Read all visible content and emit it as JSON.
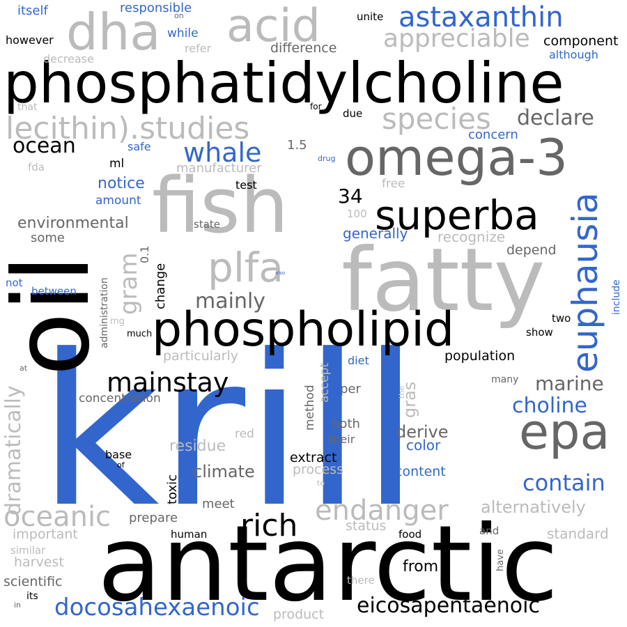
{
  "palette": {
    "black": "#000000",
    "blue": "#3366cc",
    "dark-gray": "#666666",
    "light-gray": "#bbbbbb"
  },
  "words": [
    {
      "text": "krill",
      "color": "#3366cc"
    },
    {
      "text": "antarctic",
      "color": "#000000"
    },
    {
      "text": "fatty",
      "color": "#bbbbbb"
    },
    {
      "text": "oil",
      "color": "#000000"
    },
    {
      "text": "fish",
      "color": "#bbbbbb"
    },
    {
      "text": "phosphatidylcholine",
      "color": "#000000"
    },
    {
      "text": "omega-3",
      "color": "#666666"
    },
    {
      "text": "dha",
      "color": "#bbbbbb"
    },
    {
      "text": "acid",
      "color": "#bbbbbb"
    },
    {
      "text": "phospholipid",
      "color": "#000000"
    },
    {
      "text": "epa",
      "color": "#666666"
    },
    {
      "text": "euphausia",
      "color": "#3366cc"
    },
    {
      "text": "superba",
      "color": "#000000"
    },
    {
      "text": "lecithin).studies",
      "color": "#bbbbbb"
    },
    {
      "text": "plfa",
      "color": "#bbbbbb"
    },
    {
      "text": "astaxanthin",
      "color": "#3366cc"
    },
    {
      "text": "rich",
      "color": "#000000"
    },
    {
      "text": "oceanic",
      "color": "#bbbbbb"
    },
    {
      "text": "endanger",
      "color": "#bbbbbb"
    },
    {
      "text": "mainstay",
      "color": "#000000"
    },
    {
      "text": "species",
      "color": "#bbbbbb"
    },
    {
      "text": "appreciable",
      "color": "#bbbbbb"
    },
    {
      "text": "whale",
      "color": "#3366cc"
    },
    {
      "text": "contain",
      "color": "#3366cc"
    },
    {
      "text": "docosahexaenoic",
      "color": "#3366cc"
    },
    {
      "text": "eicosapentaenoic",
      "color": "#000000"
    },
    {
      "text": "dramatically",
      "color": "#bbbbbb"
    },
    {
      "text": "mainly",
      "color": "#666666"
    },
    {
      "text": "gram",
      "color": "#bbbbbb"
    },
    {
      "text": "declare",
      "color": "#666666"
    },
    {
      "text": "ocean",
      "color": "#000000"
    },
    {
      "text": "choline",
      "color": "#3366cc"
    },
    {
      "text": "marine",
      "color": "#666666"
    },
    {
      "text": "34",
      "color": "#000000"
    },
    {
      "text": "alternatively",
      "color": "#bbbbbb"
    },
    {
      "text": "derive",
      "color": "#666666"
    },
    {
      "text": "environmental",
      "color": "#666666"
    },
    {
      "text": "climate",
      "color": "#666666"
    },
    {
      "text": "gras",
      "color": "#bbbbbb"
    },
    {
      "text": "from",
      "color": "#000000"
    },
    {
      "text": "residue",
      "color": "#bbbbbb"
    },
    {
      "text": "notice",
      "color": "#3366cc"
    },
    {
      "text": "standard",
      "color": "#bbbbbb"
    },
    {
      "text": "recognize",
      "color": "#bbbbbb"
    },
    {
      "text": "component",
      "color": "#000000"
    },
    {
      "text": "difference",
      "color": "#666666"
    },
    {
      "text": "concern",
      "color": "#3366cc"
    },
    {
      "text": "depend",
      "color": "#666666"
    },
    {
      "text": "generally",
      "color": "#3366cc"
    },
    {
      "text": "population",
      "color": "#000000"
    },
    {
      "text": "particularly",
      "color": "#bbbbbb"
    },
    {
      "text": "manufacturer",
      "color": "#bbbbbb"
    },
    {
      "text": "color",
      "color": "#3366cc"
    },
    {
      "text": "content",
      "color": "#3366cc"
    },
    {
      "text": "process",
      "color": "#bbbbbb"
    },
    {
      "text": "extract",
      "color": "#000000"
    },
    {
      "text": "harvest",
      "color": "#bbbbbb"
    },
    {
      "text": "important",
      "color": "#bbbbbb"
    },
    {
      "text": "scientific",
      "color": "#666666"
    },
    {
      "text": "status",
      "color": "#bbbbbb"
    },
    {
      "text": "prepare",
      "color": "#666666"
    },
    {
      "text": "concentration",
      "color": "#666666"
    },
    {
      "text": "product",
      "color": "#bbbbbb"
    },
    {
      "text": "method",
      "color": "#666666"
    },
    {
      "text": "accept",
      "color": "#bbbbbb"
    },
    {
      "text": "toxic",
      "color": "#000000"
    },
    {
      "text": "change",
      "color": "#000000"
    },
    {
      "text": "administration",
      "color": "#666666"
    },
    {
      "text": "itself",
      "color": "#3366cc"
    },
    {
      "text": "responsible",
      "color": "#3366cc"
    },
    {
      "text": "however",
      "color": "#000000"
    },
    {
      "text": "while",
      "color": "#3366cc"
    },
    {
      "text": "refer",
      "color": "#bbbbbb"
    },
    {
      "text": "decrease",
      "color": "#bbbbbb"
    },
    {
      "text": "unite",
      "color": "#000000"
    },
    {
      "text": "although",
      "color": "#3366cc"
    },
    {
      "text": "that",
      "color": "#bbbbbb"
    },
    {
      "text": "due",
      "color": "#000000"
    },
    {
      "text": "safe",
      "color": "#3366cc"
    },
    {
      "text": "1.5",
      "color": "#666666"
    },
    {
      "text": "fda",
      "color": "#bbbbbb"
    },
    {
      "text": "ml",
      "color": "#000000"
    },
    {
      "text": "test",
      "color": "#000000"
    },
    {
      "text": "free",
      "color": "#bbbbbb"
    },
    {
      "text": "amount",
      "color": "#3366cc"
    },
    {
      "text": "state",
      "color": "#666666"
    },
    {
      "text": "100",
      "color": "#bbbbbb"
    },
    {
      "text": "some",
      "color": "#666666"
    },
    {
      "text": "0.1",
      "color": "#666666"
    },
    {
      "text": "not",
      "color": "#3366cc"
    },
    {
      "text": "between",
      "color": "#3366cc"
    },
    {
      "text": "mg",
      "color": "#bbbbbb"
    },
    {
      "text": "much",
      "color": "#000000"
    },
    {
      "text": "two",
      "color": "#000000"
    },
    {
      "text": "show",
      "color": "#000000"
    },
    {
      "text": "include",
      "color": "#3366cc"
    },
    {
      "text": "diet",
      "color": "#3366cc"
    },
    {
      "text": "many",
      "color": "#666666"
    },
    {
      "text": "per",
      "color": "#666666"
    },
    {
      "text": "both",
      "color": "#666666"
    },
    {
      "text": "their",
      "color": "#666666"
    },
    {
      "text": "red",
      "color": "#bbbbbb"
    },
    {
      "text": "base",
      "color": "#000000"
    },
    {
      "text": "meet",
      "color": "#666666"
    },
    {
      "text": "human",
      "color": "#000000"
    },
    {
      "text": "food",
      "color": "#000000"
    },
    {
      "text": "and",
      "color": "#666666"
    },
    {
      "text": "have",
      "color": "#666666"
    },
    {
      "text": "there",
      "color": "#bbbbbb"
    },
    {
      "text": "similar",
      "color": "#bbbbbb"
    },
    {
      "text": "its",
      "color": "#000000"
    },
    {
      "text": "in",
      "color": "#666666"
    },
    {
      "text": "at",
      "color": "#666666"
    },
    {
      "text": "of",
      "color": "#000000"
    },
    {
      "text": "to",
      "color": "#bbbbbb"
    },
    {
      "text": "the",
      "color": "#bbbbbb"
    },
    {
      "text": "on",
      "color": "#666666"
    },
    {
      "text": "for",
      "color": "#000000"
    },
    {
      "text": "drug",
      "color": "#3366cc"
    },
    {
      "text": "also",
      "color": "#3366cc"
    },
    {
      "text": "it",
      "color": "#bbbbbb"
    }
  ]
}
